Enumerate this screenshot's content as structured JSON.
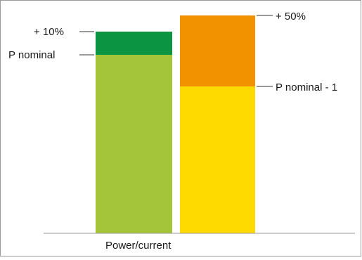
{
  "diagram": {
    "xlabel": "Power/current",
    "left_bar": {
      "segments": [
        {
          "label": "P nominal",
          "color": "#a4c43a"
        },
        {
          "label": "+ 10%",
          "color": "#0b9442"
        }
      ]
    },
    "right_bar": {
      "segments": [
        {
          "label": "P nominal - 1",
          "color": "#ffda00"
        },
        {
          "label": "+ 50%",
          "color": "#f39200"
        }
      ]
    },
    "frame_color": "#9a9a9a",
    "leader_color": "#333333"
  }
}
